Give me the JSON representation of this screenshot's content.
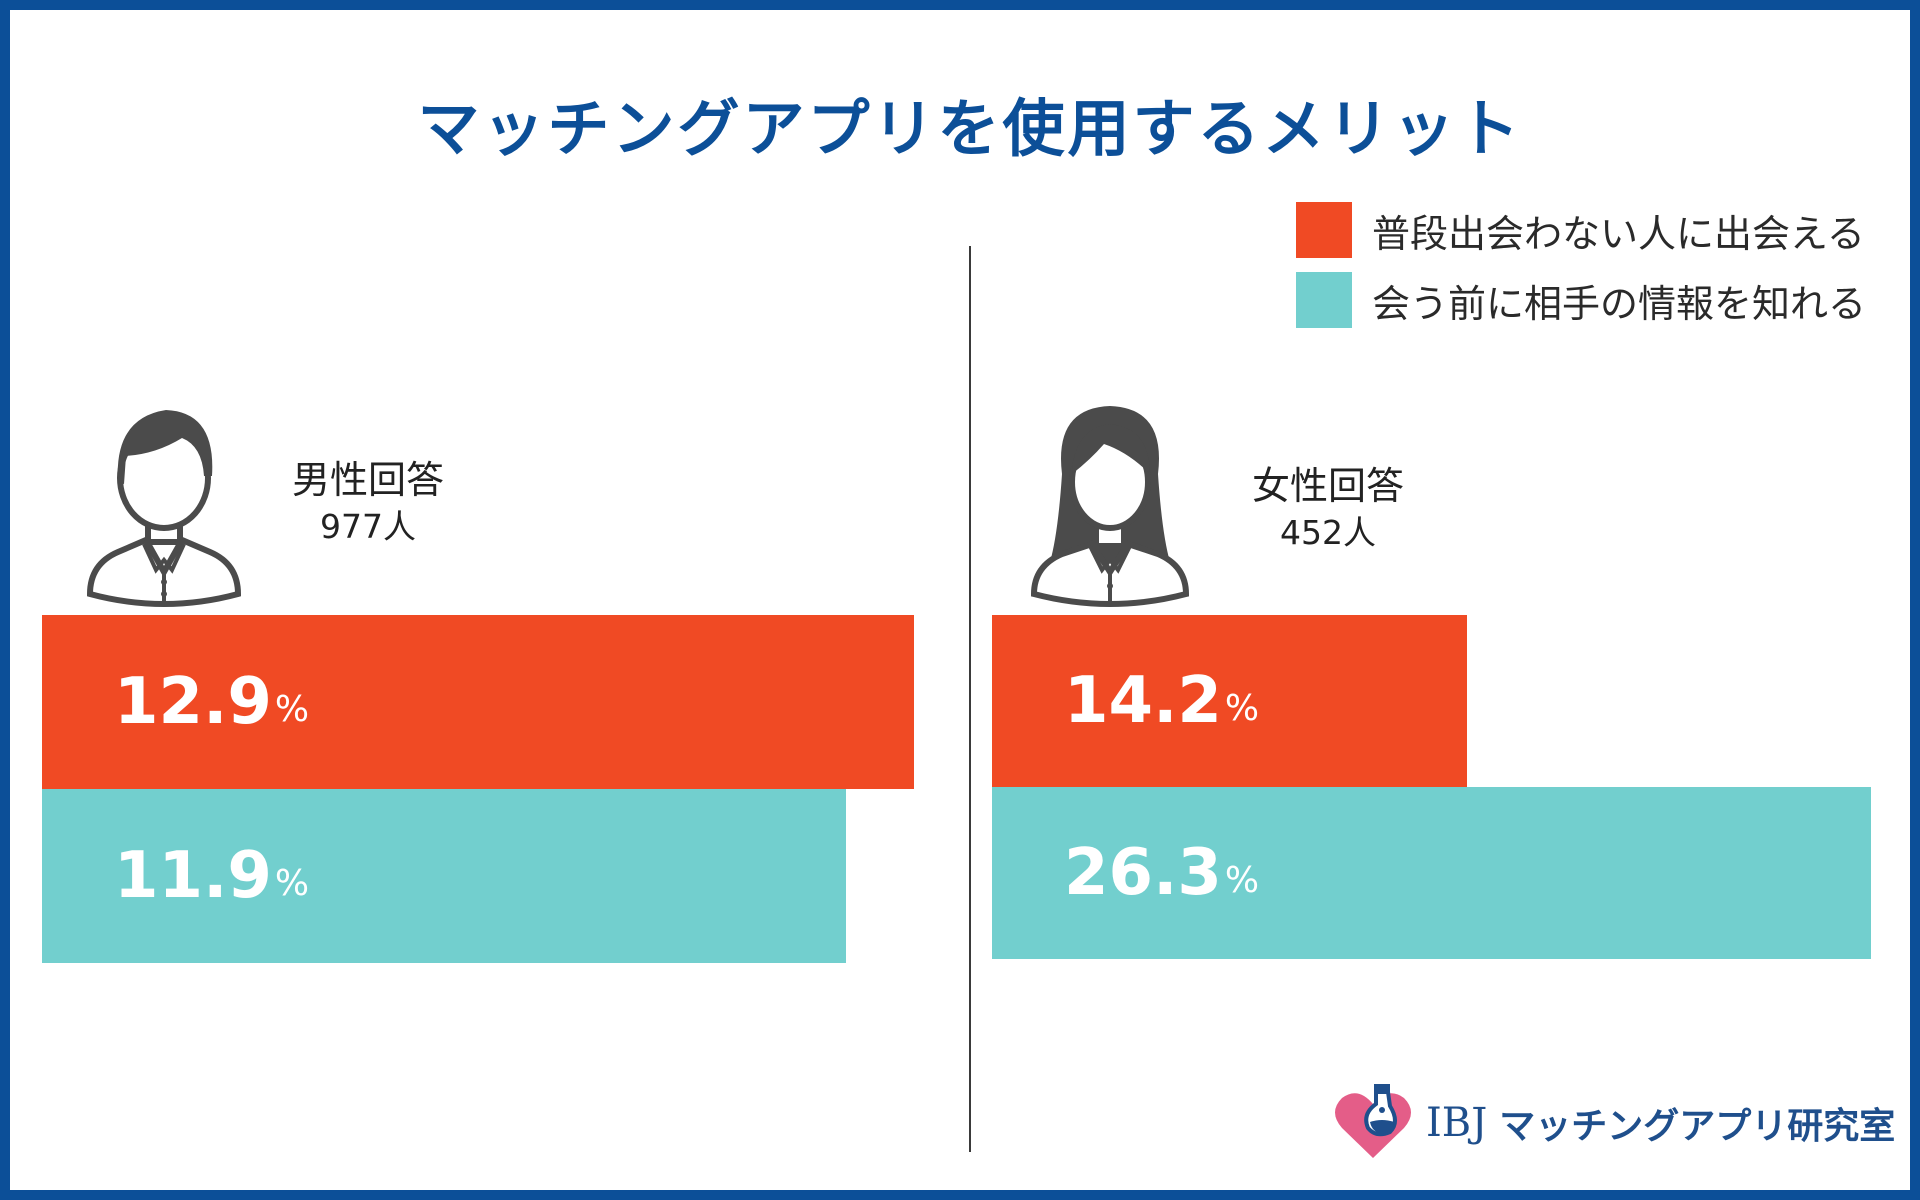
{
  "colors": {
    "frame": "#0c4f98",
    "series_red": "#f04a24",
    "series_teal": "#72cfce",
    "icon": "#4b4b4b"
  },
  "chart_data": {
    "type": "bar",
    "orientation": "horizontal",
    "title": "マッチングアプリを使用するメリット",
    "unit": "%",
    "categories": [
      "男性回答",
      "女性回答"
    ],
    "category_counts": [
      "977人",
      "452人"
    ],
    "series": [
      {
        "name": "普段出会わない人に出会える",
        "values": [
          12.9,
          14.2
        ],
        "labels": [
          "12.9",
          "14.2"
        ]
      },
      {
        "name": "会う前に相手の情報を知れる",
        "values": [
          11.9,
          26.3
        ],
        "labels": [
          "11.9",
          "26.3"
        ]
      }
    ],
    "legend_position": "top-right"
  },
  "brand": {
    "name": "IBJ",
    "subtitle": "マッチングアプリ研究室"
  }
}
